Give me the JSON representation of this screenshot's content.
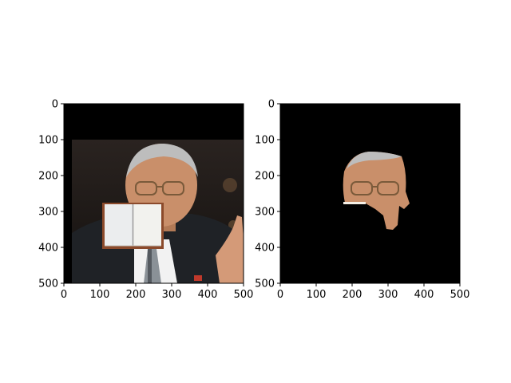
{
  "chart_data": [
    {
      "type": "image",
      "title": "",
      "xlabel": "",
      "ylabel": "",
      "xlim": [
        0,
        500
      ],
      "ylim": [
        500,
        0
      ],
      "xticks": [
        0,
        100,
        200,
        300,
        400,
        500
      ],
      "yticks": [
        0,
        100,
        200,
        300,
        400,
        500
      ],
      "xtick_labels": [
        "0",
        "100",
        "200",
        "300",
        "400",
        "500"
      ],
      "ytick_labels": [
        "0",
        "100",
        "200",
        "300",
        "400",
        "500"
      ],
      "content": "photo of a man in suit and tie, mouth region covered by an open-book overlay, black band at top",
      "grid": false
    },
    {
      "type": "image",
      "title": "",
      "xlabel": "",
      "ylabel": "",
      "xlim": [
        0,
        500
      ],
      "ylim": [
        500,
        0
      ],
      "xticks": [
        0,
        100,
        200,
        300,
        400,
        500
      ],
      "yticks": [
        0,
        100,
        200,
        300,
        400,
        500
      ],
      "xtick_labels": [
        "0",
        "100",
        "200",
        "300",
        "400",
        "500"
      ],
      "ytick_labels": [
        "0",
        "100",
        "200",
        "300",
        "400",
        "500"
      ],
      "content": "segmented face region on black background",
      "grid": false
    }
  ],
  "colors": {
    "background": "#000000",
    "suit": "#1f2226",
    "shirt": "#f2f2f2",
    "skin": "#c98f6a",
    "hair": "#bdbdbd",
    "book_cover": "#8b4a2b",
    "book_pages": "#f7f7f2"
  }
}
